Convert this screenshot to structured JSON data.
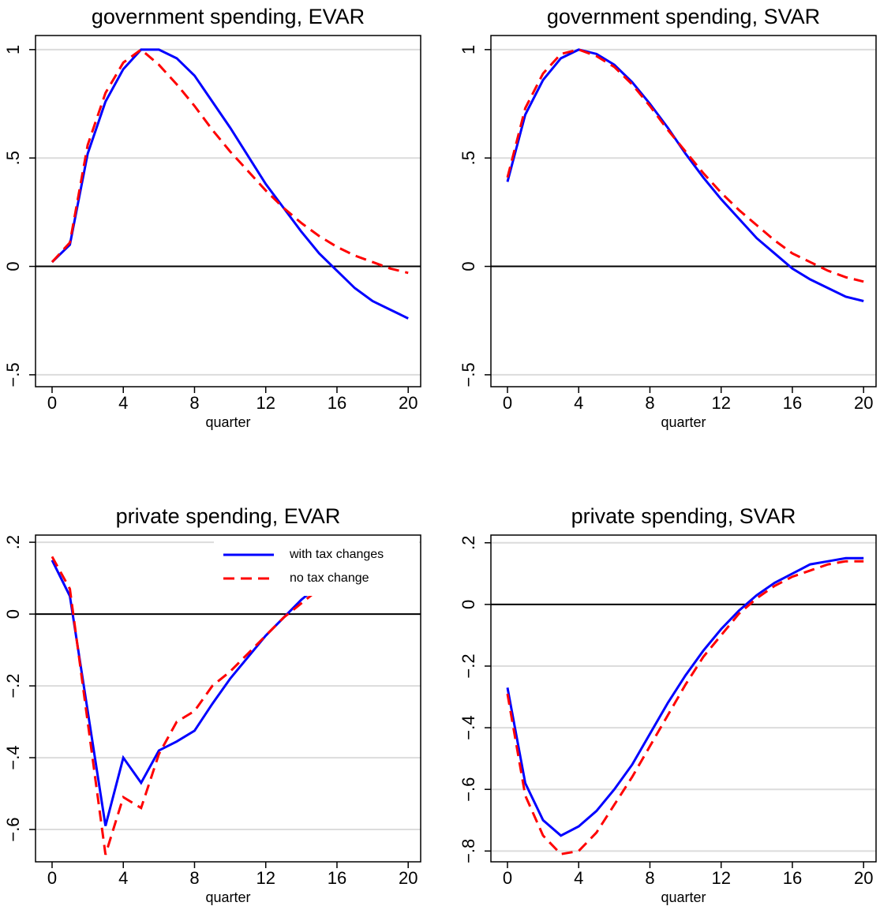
{
  "chart_data": [
    {
      "type": "line",
      "title": "government spending, EVAR",
      "x_label": "quarter",
      "x": [
        0,
        1,
        2,
        3,
        4,
        5,
        6,
        7,
        8,
        9,
        10,
        11,
        12,
        13,
        14,
        15,
        16,
        17,
        18,
        19,
        20
      ],
      "series": [
        {
          "color": "#0000ff",
          "linestyle": "solid",
          "values": [
            0.02,
            0.1,
            0.52,
            0.76,
            0.91,
            1.0,
            1.0,
            0.96,
            0.88,
            0.76,
            0.64,
            0.51,
            0.38,
            0.27,
            0.16,
            0.06,
            -0.02,
            -0.1,
            -0.16,
            -0.2,
            -0.24
          ]
        },
        {
          "color": "#ff0000",
          "linestyle": "dashed",
          "values": [
            0.02,
            0.11,
            0.56,
            0.8,
            0.94,
            1.0,
            0.93,
            0.84,
            0.74,
            0.63,
            0.53,
            0.44,
            0.35,
            0.27,
            0.2,
            0.14,
            0.09,
            0.05,
            0.02,
            -0.01,
            -0.03
          ]
        }
      ],
      "xlim": [
        -0.93,
        20.7
      ],
      "xticks": [
        0,
        4,
        8,
        12,
        16,
        20
      ],
      "ylim": [
        -0.555,
        1.065
      ],
      "yticks": [
        {
          "value": -0.5,
          "label": "−.5"
        },
        0,
        {
          "value": 0.5,
          "label": ".5"
        },
        1
      ],
      "grid": true,
      "hline": 0
    },
    {
      "type": "line",
      "title": "government spending, SVAR",
      "x_label": "quarter",
      "x": [
        0,
        1,
        2,
        3,
        4,
        5,
        6,
        7,
        8,
        9,
        10,
        11,
        12,
        13,
        14,
        15,
        16,
        17,
        18,
        19,
        20
      ],
      "series": [
        {
          "color": "#0000ff",
          "linestyle": "solid",
          "values": [
            0.39,
            0.7,
            0.86,
            0.96,
            1.0,
            0.98,
            0.93,
            0.85,
            0.75,
            0.64,
            0.52,
            0.41,
            0.31,
            0.22,
            0.13,
            0.06,
            -0.01,
            -0.06,
            -0.1,
            -0.14,
            -0.16
          ]
        },
        {
          "color": "#ff0000",
          "linestyle": "dashed",
          "values": [
            0.41,
            0.73,
            0.89,
            0.98,
            1.0,
            0.97,
            0.92,
            0.84,
            0.74,
            0.63,
            0.53,
            0.43,
            0.34,
            0.26,
            0.19,
            0.12,
            0.06,
            0.02,
            -0.02,
            -0.05,
            -0.07
          ]
        }
      ],
      "xlim": [
        -0.93,
        20.7
      ],
      "xticks": [
        0,
        4,
        8,
        12,
        16,
        20
      ],
      "ylim": [
        -0.555,
        1.065
      ],
      "yticks": [
        {
          "value": -0.5,
          "label": "−.5"
        },
        0,
        {
          "value": 0.5,
          "label": ".5"
        },
        1
      ],
      "grid": true,
      "hline": 0
    },
    {
      "type": "line",
      "title": "private spending, EVAR",
      "x_label": "quarter",
      "x": [
        0,
        1,
        2,
        3,
        4,
        5,
        6,
        7,
        8,
        9,
        10,
        11,
        12,
        13,
        14,
        15,
        16,
        17,
        18,
        19,
        20
      ],
      "series": [
        {
          "name": "with tax changes",
          "color": "#0000ff",
          "linestyle": "solid",
          "values": [
            0.15,
            0.05,
            -0.27,
            -0.59,
            -0.4,
            -0.47,
            -0.38,
            -0.355,
            -0.325,
            -0.25,
            -0.18,
            -0.12,
            -0.06,
            -0.01,
            0.04,
            0.08,
            0.11,
            0.13,
            0.14,
            0.15,
            0.15
          ]
        },
        {
          "name": "no tax change",
          "color": "#ff0000",
          "linestyle": "dashed",
          "values": [
            0.16,
            0.07,
            -0.3,
            -0.67,
            -0.51,
            -0.54,
            -0.39,
            -0.3,
            -0.27,
            -0.2,
            -0.16,
            -0.11,
            -0.06,
            -0.01,
            0.03,
            0.07,
            0.1,
            0.12,
            0.13,
            0.14,
            0.14
          ]
        }
      ],
      "xlim": [
        -0.93,
        20.7
      ],
      "xticks": [
        0,
        4,
        8,
        12,
        16,
        20
      ],
      "ylim": [
        -0.69,
        0.22
      ],
      "yticks": [
        {
          "value": -0.6,
          "label": "−.6"
        },
        {
          "value": -0.4,
          "label": "−.4"
        },
        {
          "value": -0.2,
          "label": "−.2"
        },
        0,
        {
          "value": 0.2,
          "label": ".2"
        }
      ],
      "grid": true,
      "hline": 0,
      "legend": "upper right"
    },
    {
      "type": "line",
      "title": "private spending, SVAR",
      "x_label": "quarter",
      "x": [
        0,
        1,
        2,
        3,
        4,
        5,
        6,
        7,
        8,
        9,
        10,
        11,
        12,
        13,
        14,
        15,
        16,
        17,
        18,
        19,
        20
      ],
      "series": [
        {
          "color": "#0000ff",
          "linestyle": "solid",
          "values": [
            -0.27,
            -0.58,
            -0.7,
            -0.75,
            -0.72,
            -0.67,
            -0.6,
            -0.52,
            -0.42,
            -0.32,
            -0.23,
            -0.15,
            -0.08,
            -0.02,
            0.03,
            0.07,
            0.1,
            0.13,
            0.14,
            0.15,
            0.15
          ]
        },
        {
          "color": "#ff0000",
          "linestyle": "dashed",
          "values": [
            -0.29,
            -0.62,
            -0.75,
            -0.81,
            -0.8,
            -0.74,
            -0.65,
            -0.56,
            -0.46,
            -0.36,
            -0.26,
            -0.17,
            -0.1,
            -0.03,
            0.02,
            0.06,
            0.09,
            0.11,
            0.13,
            0.14,
            0.14
          ]
        }
      ],
      "xlim": [
        -0.93,
        20.7
      ],
      "xticks": [
        0,
        4,
        8,
        12,
        16,
        20
      ],
      "ylim": [
        -0.835,
        0.225
      ],
      "yticks": [
        {
          "value": -0.8,
          "label": "−.8"
        },
        {
          "value": -0.6,
          "label": "−.6"
        },
        {
          "value": -0.4,
          "label": "−.4"
        },
        {
          "value": -0.2,
          "label": "−.2"
        },
        0,
        {
          "value": 0.2,
          "label": ".2"
        }
      ],
      "grid": true,
      "hline": 0
    }
  ]
}
